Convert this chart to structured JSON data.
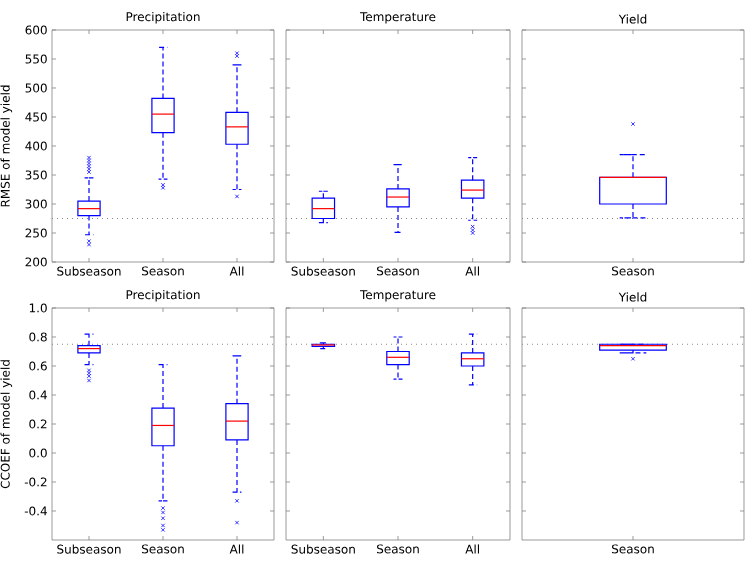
{
  "chart_data": [
    {
      "type": "box",
      "title": "Precipitation",
      "ylabel": "RMSE of model yield",
      "categories": [
        "Subseason",
        "Season",
        "All"
      ],
      "ylim": [
        200,
        600
      ],
      "yticks": [
        200,
        250,
        300,
        350,
        400,
        450,
        500,
        550,
        600
      ],
      "grid": false,
      "ref_lines": [
        {
          "axis": "y",
          "value": 275,
          "color": "#888888",
          "line_style": "dotted"
        }
      ],
      "series": [
        {
          "color": "#0000ff",
          "boxes": [
            {
              "low": 247,
              "q1": 280,
              "median": 292,
              "q3": 305,
              "high": 345,
              "outliers": [
                230,
                236,
                355,
                360,
                365,
                370,
                375,
                380
              ]
            },
            {
              "low": 343,
              "q1": 423,
              "median": 455,
              "q3": 482,
              "high": 570,
              "outliers": [
                328,
                333
              ]
            },
            {
              "low": 325,
              "q1": 403,
              "median": 433,
              "q3": 458,
              "high": 540,
              "outliers": [
                313,
                555,
                560
              ]
            }
          ]
        }
      ]
    },
    {
      "type": "box",
      "title": "Temperature",
      "categories": [
        "Subseason",
        "Season",
        "All"
      ],
      "ylim": [
        200,
        600
      ],
      "yticks": [
        200,
        250,
        300,
        350,
        400,
        450,
        500,
        550,
        600
      ],
      "tick_labels": "x",
      "grid": false,
      "ref_lines": [
        {
          "axis": "y",
          "value": 275,
          "color": "#888888",
          "line_style": "dotted"
        }
      ],
      "series": [
        {
          "color": "#0000ff",
          "boxes": [
            {
              "low": 268,
              "q1": 275,
              "median": 292,
              "q3": 310,
              "high": 322
            },
            {
              "low": 251,
              "q1": 295,
              "median": 312,
              "q3": 326,
              "high": 368
            },
            {
              "low": 272,
              "q1": 310,
              "median": 324,
              "q3": 341,
              "high": 380,
              "outliers": [
                250,
                255,
                261
              ]
            }
          ]
        }
      ]
    },
    {
      "type": "box",
      "title": "Yield",
      "categories": [
        "Season"
      ],
      "ylim": [
        200,
        600
      ],
      "yticks": [
        200,
        250,
        300,
        350,
        400,
        450,
        500,
        550,
        600
      ],
      "tick_labels": "x",
      "grid": false,
      "ref_lines": [
        {
          "axis": "y",
          "value": 275,
          "color": "#888888",
          "line_style": "dotted"
        }
      ],
      "series": [
        {
          "color": "#0000ff",
          "boxes": [
            {
              "low": 276,
              "q1": 300,
              "median": 346,
              "q3": 346,
              "high": 385,
              "outliers": [
                438
              ]
            }
          ]
        }
      ]
    },
    {
      "type": "box",
      "title": "Precipitation",
      "ylabel": "CCOEF of model yield",
      "categories": [
        "Subseason",
        "Season",
        "All"
      ],
      "ylim": [
        -0.6,
        1.0
      ],
      "yticks": [
        -0.4,
        -0.2,
        {
          "value": 0,
          "label": "0.0"
        },
        0.2,
        0.4,
        0.6,
        0.8,
        {
          "value": 1,
          "label": "1.0"
        }
      ],
      "grid": false,
      "ref_lines": [
        {
          "axis": "y",
          "value": 0.75,
          "color": "#888888",
          "line_style": "dotted"
        }
      ],
      "series": [
        {
          "color": "#0000ff",
          "boxes": [
            {
              "low": 0.61,
              "q1": 0.69,
              "median": 0.72,
              "q3": 0.74,
              "high": 0.82,
              "outliers": [
                0.5,
                0.53,
                0.55,
                0.57
              ]
            },
            {
              "low": -0.33,
              "q1": 0.05,
              "median": 0.19,
              "q3": 0.31,
              "high": 0.61,
              "outliers": [
                -0.53,
                -0.5,
                -0.45,
                -0.41,
                -0.38
              ]
            },
            {
              "low": -0.27,
              "q1": 0.09,
              "median": 0.22,
              "q3": 0.34,
              "high": 0.67,
              "outliers": [
                -0.48,
                -0.33
              ]
            }
          ]
        }
      ]
    },
    {
      "type": "box",
      "title": "Temperature",
      "categories": [
        "Subseason",
        "Season",
        "All"
      ],
      "ylim": [
        -0.6,
        1.0
      ],
      "yticks": [
        -0.4,
        -0.2,
        0.0,
        0.2,
        0.4,
        0.6,
        0.8,
        1.0
      ],
      "tick_labels": "x",
      "grid": false,
      "ref_lines": [
        {
          "axis": "y",
          "value": 0.75,
          "color": "#888888",
          "line_style": "dotted"
        }
      ],
      "series": [
        {
          "color": "#0000ff",
          "boxes": [
            {
              "low": 0.72,
              "q1": 0.735,
              "median": 0.745,
              "q3": 0.75,
              "high": 0.76
            },
            {
              "low": 0.51,
              "q1": 0.61,
              "median": 0.66,
              "q3": 0.7,
              "high": 0.8
            },
            {
              "low": 0.47,
              "q1": 0.6,
              "median": 0.65,
              "q3": 0.69,
              "high": 0.82
            }
          ]
        }
      ]
    },
    {
      "type": "box",
      "title": "Yield",
      "categories": [
        "Season"
      ],
      "ylim": [
        -0.6,
        1.0
      ],
      "yticks": [
        -0.4,
        -0.2,
        0.0,
        0.2,
        0.4,
        0.6,
        0.8,
        1.0
      ],
      "tick_labels": "x",
      "grid": false,
      "ref_lines": [
        {
          "axis": "y",
          "value": 0.75,
          "color": "#888888",
          "line_style": "dotted"
        }
      ],
      "series": [
        {
          "color": "#0000ff",
          "boxes": [
            {
              "low": 0.69,
              "q1": 0.71,
              "median": 0.74,
              "q3": 0.75,
              "high": 0.75,
              "outliers": [
                0.65
              ]
            }
          ]
        }
      ]
    }
  ]
}
